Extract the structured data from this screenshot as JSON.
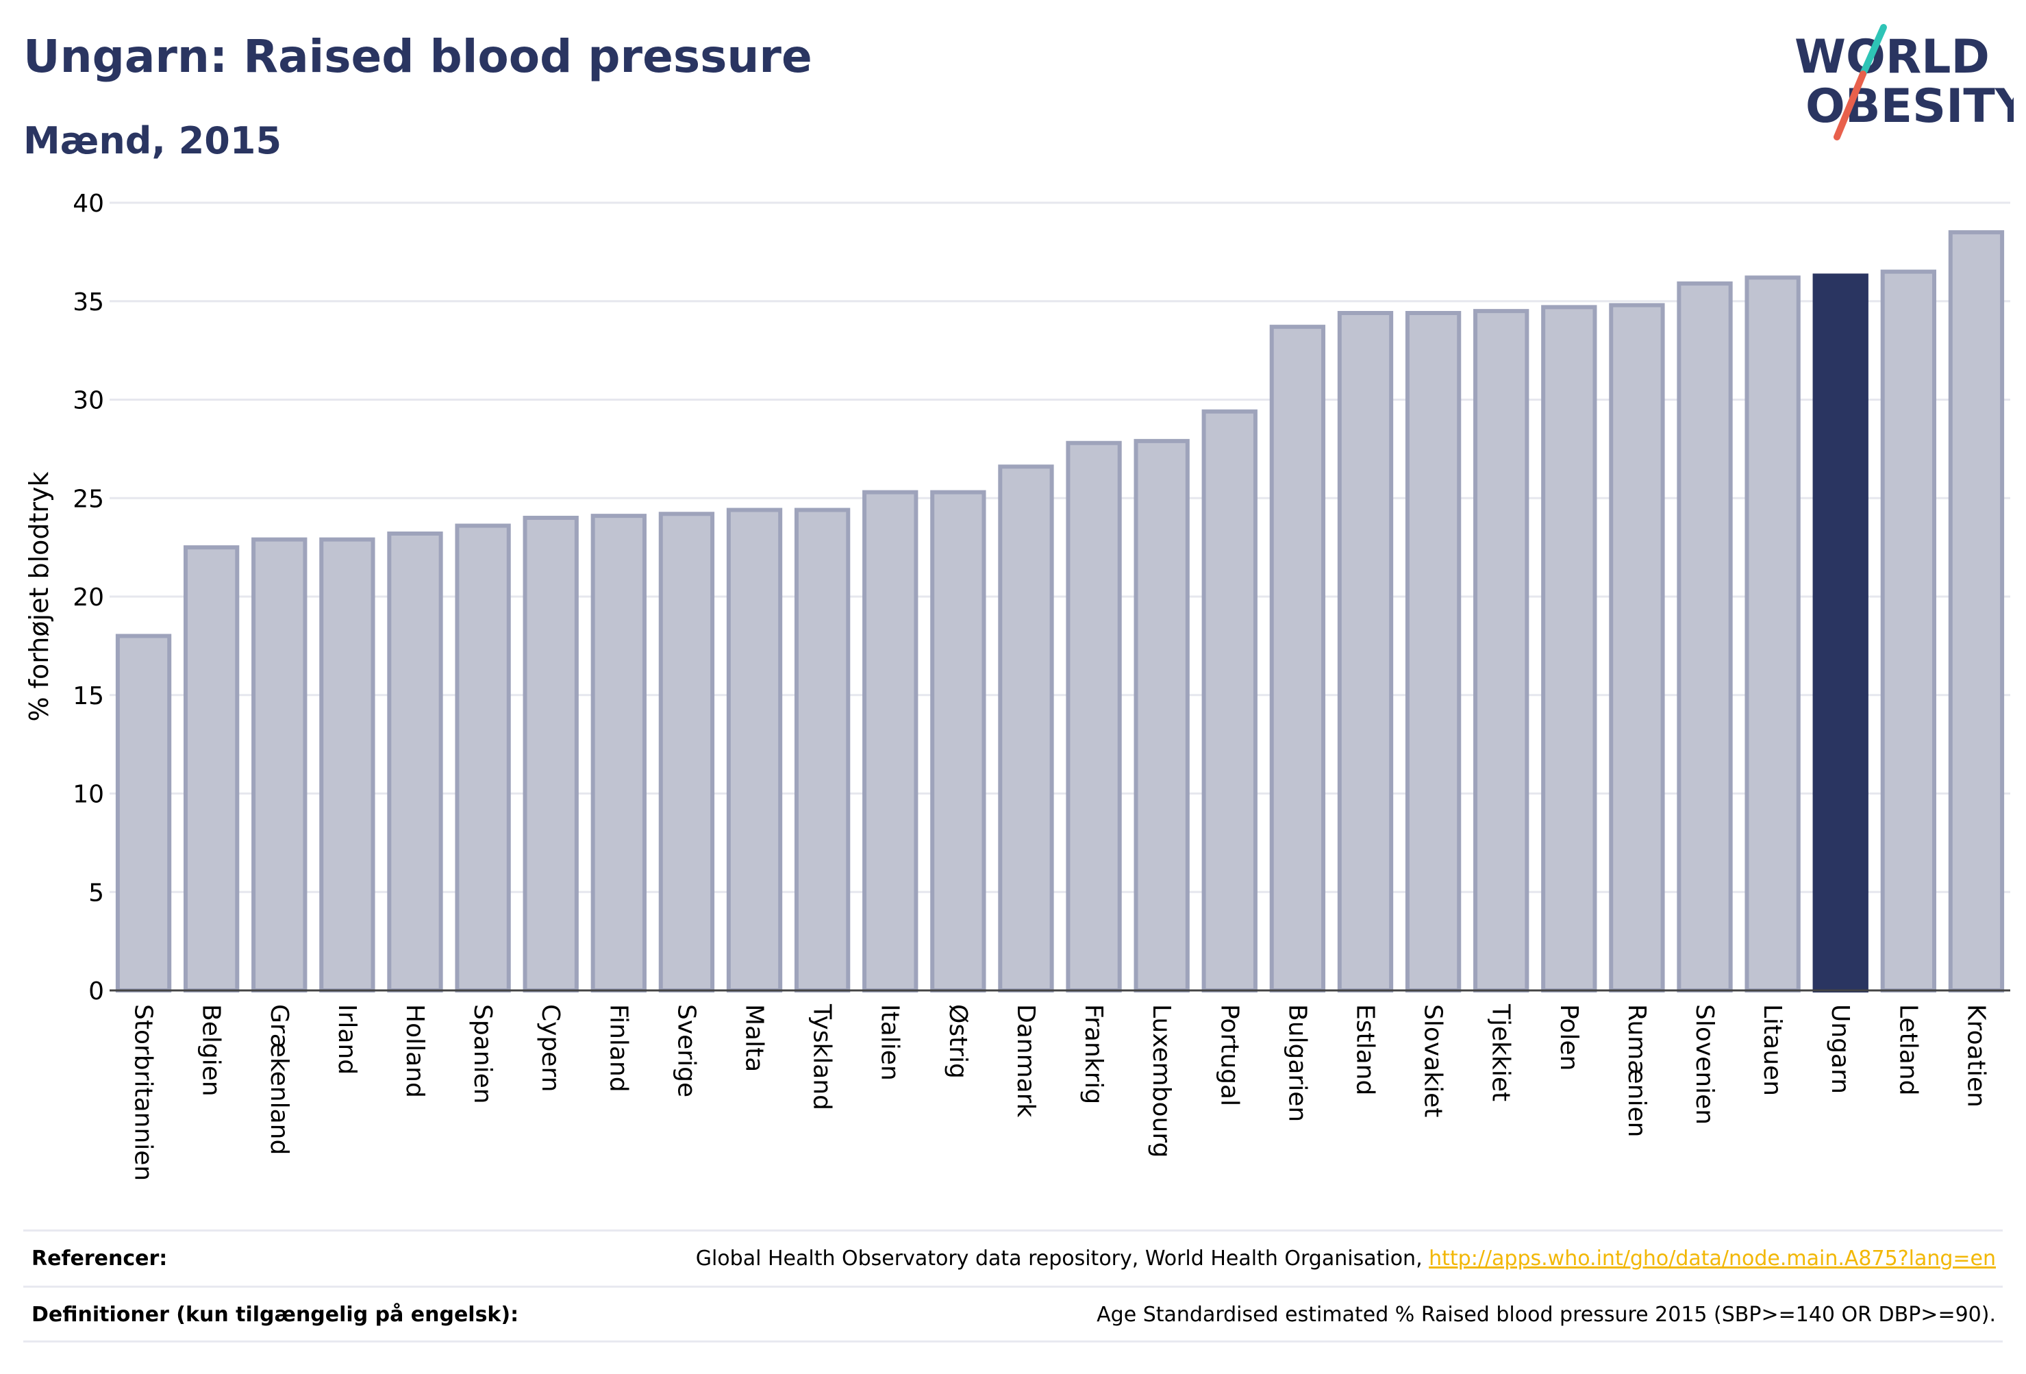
{
  "header": {
    "title": "Ungarn: Raised blood pressure",
    "subtitle": "Mænd, 2015"
  },
  "logo": {
    "line1": "WORLD",
    "line2": "OBESITY",
    "text_color": "#2a3561",
    "slash_colors": [
      "#2ec4b6",
      "#e8604c"
    ]
  },
  "colors": {
    "bar_fill": "#c0c3d1",
    "bar_stroke": "#9ea3bb",
    "highlight": "#2a3561",
    "grid": "#e6e7ee"
  },
  "chart_data": {
    "type": "bar",
    "title": "Ungarn: Raised blood pressure",
    "subtitle": "Mænd, 2015",
    "ylabel": "% forhøjet blodtryk",
    "xlabel": "",
    "ylim": [
      0,
      40
    ],
    "yticks": [
      0,
      5,
      10,
      15,
      20,
      25,
      30,
      35,
      40
    ],
    "grid": true,
    "highlight": "Ungarn",
    "categories": [
      "Storbritannien",
      "Belgien",
      "Grækenland",
      "Irland",
      "Holland",
      "Spanien",
      "Cypern",
      "Finland",
      "Sverige",
      "Malta",
      "Tyskland",
      "Italien",
      "Østrig",
      "Danmark",
      "Frankrig",
      "Luxembourg",
      "Portugal",
      "Bulgarien",
      "Estland",
      "Slovakiet",
      "Tjekkiet",
      "Polen",
      "Rumænien",
      "Slovenien",
      "Litauen",
      "Ungarn",
      "Letland",
      "Kroatien"
    ],
    "values": [
      18.0,
      22.5,
      22.9,
      22.9,
      23.2,
      23.6,
      24.0,
      24.1,
      24.2,
      24.4,
      24.4,
      25.3,
      25.3,
      26.6,
      27.8,
      27.9,
      29.4,
      33.7,
      34.4,
      34.4,
      34.5,
      34.7,
      34.8,
      35.9,
      36.2,
      36.3,
      36.5,
      38.5
    ]
  },
  "footer": {
    "references_label": "Referencer:",
    "references_text": "Global Health Observatory data repository, World Health Organisation, ",
    "references_link": "http://apps.who.int/gho/data/node.main.A875?lang=en",
    "definitions_label": "Definitioner (kun tilgængelig på engelsk):",
    "definitions_text": "Age Standardised estimated % Raised blood pressure 2015 (SBP>=140 OR DBP>=90)."
  }
}
